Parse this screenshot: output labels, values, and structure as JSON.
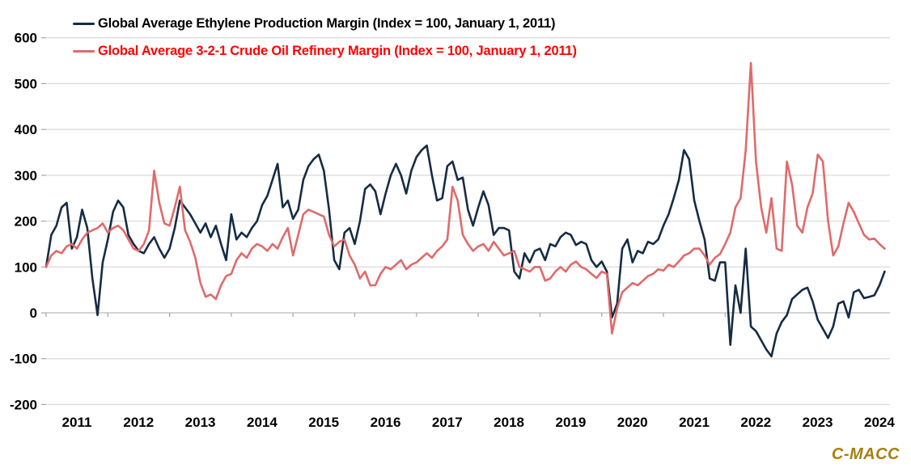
{
  "brand": "C-MACC",
  "brand_color": "#A6800D",
  "background_color": "#FFFFFF",
  "chart_data": {
    "type": "line",
    "title": "",
    "xlabel": "",
    "ylabel": "",
    "grid": "horizontal-only",
    "grid_color": "#D9D9D9",
    "axis_color": "#BFBFBF",
    "tick_label_color": "#000000",
    "legend_position": "top-left-inside",
    "x_axis": {
      "ticks": [
        2011,
        2012,
        2013,
        2014,
        2015,
        2016,
        2017,
        2018,
        2019,
        2020,
        2021,
        2022,
        2023,
        2024
      ],
      "range": [
        2010.95,
        2024.68
      ]
    },
    "y_axis": {
      "ticks": [
        600,
        500,
        400,
        300,
        200,
        100,
        0,
        -100,
        -200
      ],
      "range": [
        -200,
        600
      ]
    },
    "x_unit": "year (weekly-frequency index data, sampled monthly here)",
    "series": [
      {
        "name": "Global Average Ethylene Production Margin (Index = 100, January 1, 2011)",
        "color": "#152C44",
        "legend_text_color": "#000000",
        "x_start": 2011.0,
        "x_step": 0.0833333,
        "values": [
          100,
          170,
          190,
          230,
          240,
          140,
          165,
          225,
          185,
          75,
          -5,
          110,
          160,
          220,
          245,
          230,
          170,
          150,
          135,
          130,
          150,
          165,
          140,
          120,
          140,
          185,
          245,
          230,
          215,
          195,
          175,
          195,
          165,
          190,
          150,
          115,
          215,
          160,
          175,
          165,
          185,
          200,
          235,
          255,
          290,
          325,
          230,
          245,
          205,
          225,
          290,
          320,
          335,
          345,
          310,
          225,
          115,
          95,
          175,
          185,
          150,
          200,
          270,
          280,
          265,
          215,
          260,
          300,
          325,
          300,
          260,
          310,
          340,
          355,
          365,
          300,
          245,
          250,
          320,
          330,
          290,
          295,
          225,
          190,
          230,
          265,
          235,
          170,
          185,
          185,
          180,
          90,
          75,
          130,
          110,
          135,
          140,
          115,
          150,
          145,
          165,
          175,
          170,
          148,
          155,
          150,
          115,
          100,
          112,
          90,
          -10,
          20,
          140,
          160,
          110,
          135,
          130,
          155,
          150,
          160,
          190,
          215,
          250,
          290,
          355,
          335,
          245,
          200,
          160,
          75,
          70,
          110,
          110,
          -70,
          60,
          0,
          140,
          -30,
          -40,
          -60,
          -80,
          -95,
          -45,
          -20,
          -5,
          30,
          40,
          50,
          55,
          25,
          -15,
          -35,
          -55,
          -30,
          20,
          25,
          -10,
          45,
          50,
          32,
          35,
          38,
          60,
          90
        ]
      },
      {
        "name": "Global Average 3-2-1 Crude Oil Refinery Margin (Index = 100, January 1, 2011)",
        "color": "#E06A6A",
        "legend_text_color": "#FF0000",
        "x_start": 2011.0,
        "x_step": 0.0833333,
        "values": [
          100,
          125,
          135,
          130,
          145,
          150,
          140,
          160,
          175,
          180,
          185,
          195,
          175,
          185,
          190,
          180,
          160,
          140,
          135,
          150,
          180,
          310,
          240,
          195,
          190,
          230,
          275,
          180,
          155,
          120,
          65,
          35,
          40,
          30,
          60,
          80,
          85,
          115,
          130,
          120,
          140,
          150,
          145,
          135,
          150,
          140,
          165,
          185,
          125,
          170,
          215,
          225,
          220,
          215,
          210,
          170,
          145,
          155,
          160,
          125,
          105,
          75,
          90,
          60,
          60,
          85,
          100,
          95,
          105,
          115,
          95,
          105,
          110,
          120,
          130,
          120,
          135,
          145,
          160,
          275,
          245,
          170,
          150,
          135,
          145,
          150,
          135,
          155,
          140,
          125,
          130,
          135,
          100,
          95,
          90,
          100,
          100,
          70,
          75,
          90,
          100,
          90,
          105,
          112,
          100,
          95,
          85,
          76,
          90,
          85,
          -45,
          10,
          45,
          55,
          65,
          60,
          70,
          80,
          85,
          95,
          92,
          105,
          100,
          112,
          125,
          130,
          140,
          140,
          125,
          105,
          120,
          128,
          150,
          175,
          230,
          250,
          355,
          545,
          330,
          230,
          175,
          250,
          140,
          135,
          330,
          280,
          190,
          175,
          230,
          260,
          345,
          330,
          200,
          125,
          145,
          195,
          240,
          220,
          195,
          170,
          160,
          162,
          150,
          140
        ]
      }
    ]
  }
}
